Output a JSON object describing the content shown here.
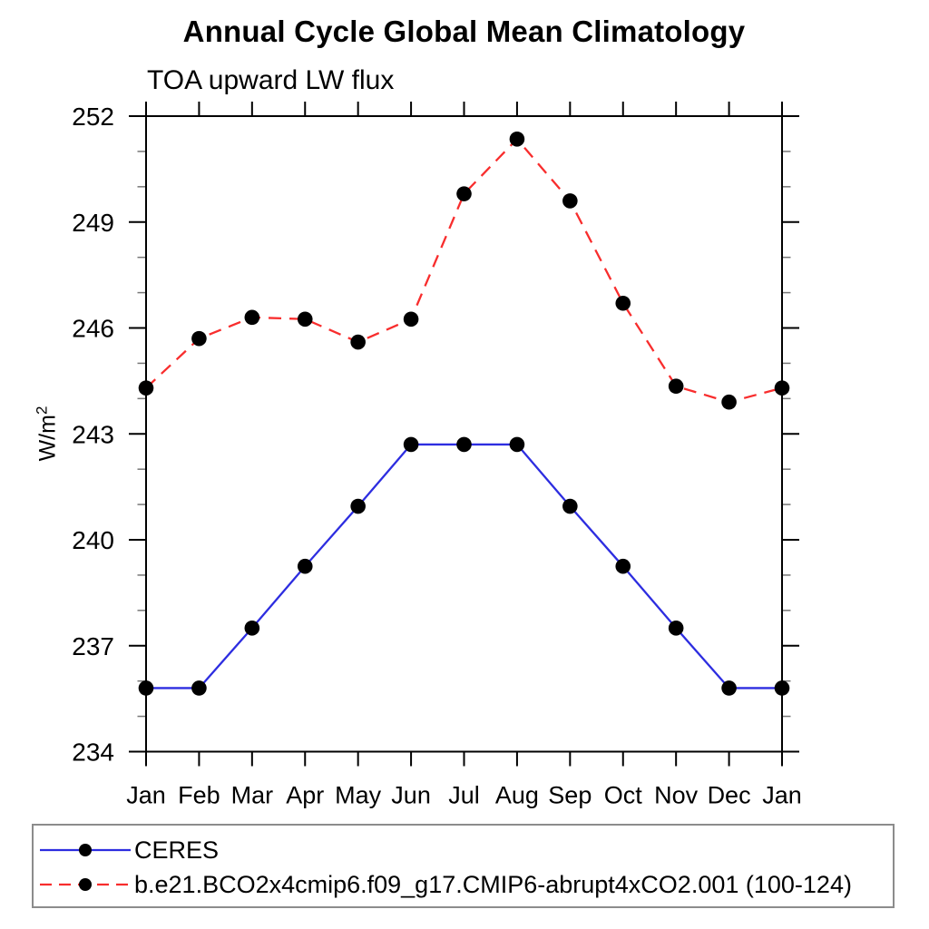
{
  "header": {
    "title": "Annual Cycle Global Mean Climatology",
    "subtitle": "TOA upward LW flux"
  },
  "axes": {
    "y_label_base": "W/m",
    "y_label_exponent": "2",
    "y_major_tick_labels": [
      "234",
      "237",
      "240",
      "243",
      "246",
      "249",
      "252"
    ],
    "x_tick_labels": [
      "Jan",
      "Feb",
      "Mar",
      "Apr",
      "May",
      "Jun",
      "Jul",
      "Aug",
      "Sep",
      "Oct",
      "Nov",
      "Dec",
      "Jan"
    ]
  },
  "chart_data": {
    "type": "line",
    "title": "Annual Cycle Global Mean Climatology",
    "subtitle": "TOA upward LW flux",
    "xlabel": "",
    "ylabel": "W/m^2",
    "ylim": [
      234,
      252
    ],
    "y_major_step": 3,
    "y_minor_step": 1,
    "grid": false,
    "legend_position": "bottom-left-box",
    "categories": [
      "Jan",
      "Feb",
      "Mar",
      "Apr",
      "May",
      "Jun",
      "Jul",
      "Aug",
      "Sep",
      "Oct",
      "Nov",
      "Dec",
      "Jan"
    ],
    "series": [
      {
        "name": "CERES",
        "line_style": "solid",
        "color": "#2d2de0",
        "marker": "black-filled-circle",
        "values": [
          235.8,
          235.8,
          237.5,
          239.25,
          240.95,
          242.7,
          242.7,
          242.7,
          240.95,
          239.25,
          237.5,
          235.8,
          235.8
        ]
      },
      {
        "name": "b.e21.BCO2x4cmip6.f09_g17.CMIP6-abrupt4xCO2.001 (100-124)",
        "line_style": "dashed",
        "color": "#f82d2d",
        "marker": "black-filled-circle",
        "values": [
          244.3,
          245.7,
          246.3,
          246.25,
          245.6,
          246.25,
          249.8,
          251.35,
          249.6,
          246.7,
          244.35,
          243.9,
          244.3
        ]
      }
    ]
  },
  "style": {
    "axis_color": "#000000",
    "minor_tick_color": "#777777",
    "marker_color": "#000000",
    "legend_border_color": "#8c8c8c",
    "background": "#ffffff"
  }
}
